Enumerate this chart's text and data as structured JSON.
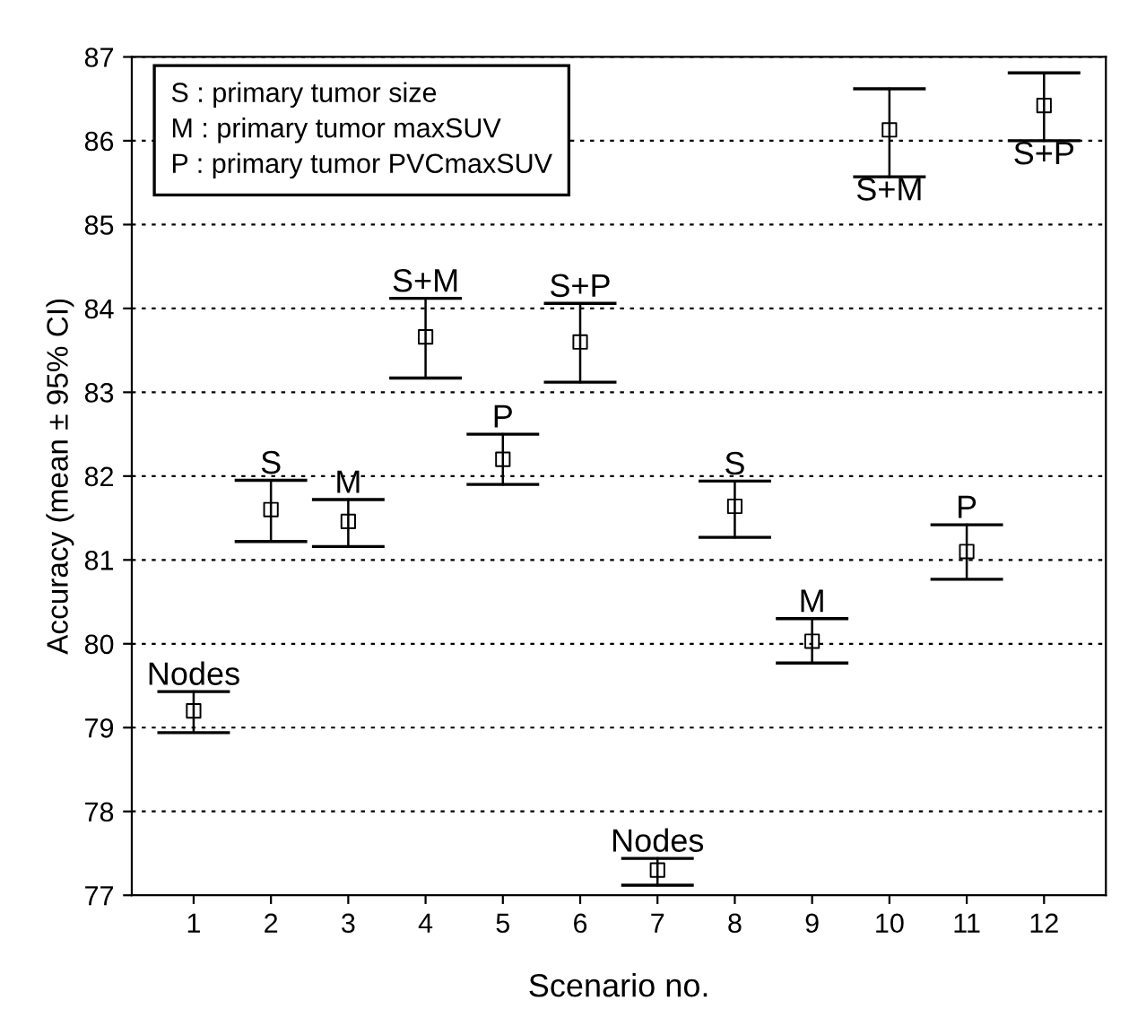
{
  "chart_data": {
    "type": "scatter",
    "xlabel": "Scenario no.",
    "ylabel": "Accuracy (mean ± 95% CI)",
    "x": [
      1,
      2,
      3,
      4,
      5,
      6,
      7,
      8,
      9,
      10,
      11,
      12
    ],
    "series": [
      {
        "color": "#000000",
        "values": [
          79.2,
          81.6,
          81.46,
          83.66,
          82.2,
          83.6,
          77.3,
          81.64,
          80.03,
          86.13,
          81.1,
          86.42
        ],
        "errors": [
          [
            78.94,
            79.43
          ],
          [
            81.22,
            81.95
          ],
          [
            81.16,
            81.72
          ],
          [
            83.17,
            84.12
          ],
          [
            81.9,
            82.5
          ],
          [
            83.12,
            84.06
          ],
          [
            77.12,
            77.44
          ],
          [
            81.27,
            81.94
          ],
          [
            79.77,
            80.3
          ],
          [
            85.57,
            86.62
          ],
          [
            80.77,
            81.42
          ],
          [
            86.0,
            86.81
          ]
        ]
      }
    ],
    "marker": "square",
    "xlim": [
      0.2,
      12.8
    ],
    "xticks": [
      1,
      2,
      3,
      4,
      5,
      6,
      7,
      8,
      9,
      10,
      11,
      12
    ],
    "ylim": [
      77,
      87
    ],
    "yticks": [
      77,
      78,
      79,
      80,
      81,
      82,
      83,
      84,
      85,
      86,
      87
    ],
    "grid": "y",
    "annotations": [
      {
        "text": "Nodes",
        "x": 1,
        "y": 79.43
      },
      {
        "text": "S",
        "x": 2,
        "y": 81.95
      },
      {
        "text": "M",
        "x": 3,
        "y": 81.72
      },
      {
        "text": "S+M",
        "x": 4,
        "y": 84.12
      },
      {
        "text": "P",
        "x": 5,
        "y": 82.5
      },
      {
        "text": "S+P",
        "x": 6,
        "y": 84.06
      },
      {
        "text": "Nodes",
        "x": 7,
        "y": 77.44
      },
      {
        "text": "S",
        "x": 8,
        "y": 81.94
      },
      {
        "text": "M",
        "x": 9,
        "y": 80.3
      },
      {
        "text": "S+M",
        "x": 10,
        "y": 85.57
      },
      {
        "text": "P",
        "x": 11,
        "y": 81.42
      },
      {
        "text": "S+P",
        "x": 12,
        "y": 86.0
      },
      "S : primary tumor size",
      "M : primary tumor maxSUV",
      "P : primary tumor PVCmaxSUV"
    ]
  }
}
